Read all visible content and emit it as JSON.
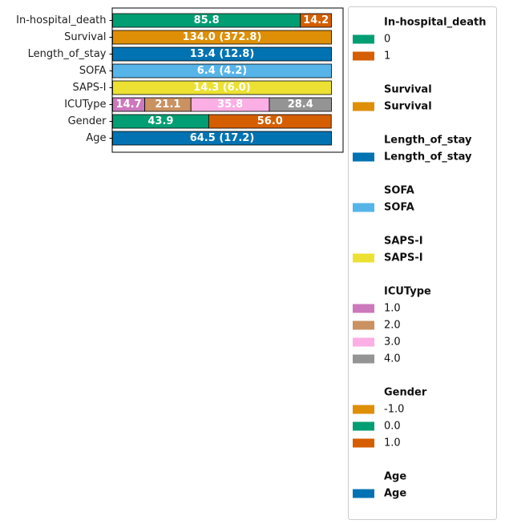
{
  "chart_data": {
    "type": "bar",
    "orientation": "horizontal",
    "stacked": true,
    "title": "",
    "xlabel": "",
    "ylabel": "",
    "xlim": [
      0,
      100
    ],
    "grid": false,
    "legend_placement": "right",
    "rows": [
      {
        "name": "In-hospital_death",
        "segments": [
          {
            "legend": "0",
            "value": 85.8,
            "label": "85.8",
            "color": "#029e73"
          },
          {
            "legend": "1",
            "value": 14.2,
            "label": "14.2",
            "color": "#d55e00"
          }
        ]
      },
      {
        "name": "Survival",
        "segments": [
          {
            "legend": "Survival",
            "value": 100,
            "label": "134.0 (372.8)",
            "color": "#de8f05"
          }
        ]
      },
      {
        "name": "Length_of_stay",
        "segments": [
          {
            "legend": "Length_of_stay",
            "value": 100,
            "label": "13.4 (12.8)",
            "color": "#0173b2"
          }
        ]
      },
      {
        "name": "SOFA",
        "segments": [
          {
            "legend": "SOFA",
            "value": 100,
            "label": "6.4 (4.2)",
            "color": "#56b4e9"
          }
        ]
      },
      {
        "name": "SAPS-I",
        "segments": [
          {
            "legend": "SAPS-I",
            "value": 100,
            "label": "14.3 (6.0)",
            "color": "#ece133"
          }
        ]
      },
      {
        "name": "ICUType",
        "segments": [
          {
            "legend": "1.0",
            "value": 14.7,
            "label": "14.7",
            "color": "#cc78bc"
          },
          {
            "legend": "2.0",
            "value": 21.1,
            "label": "21.1",
            "color": "#ca9161"
          },
          {
            "legend": "3.0",
            "value": 35.8,
            "label": "35.8",
            "color": "#fbafe4"
          },
          {
            "legend": "4.0",
            "value": 28.4,
            "label": "28.4",
            "color": "#949494"
          }
        ]
      },
      {
        "name": "Gender",
        "segments": [
          {
            "legend": "-1.0",
            "value": 0,
            "label": "",
            "color": "#de8f05"
          },
          {
            "legend": "0.0",
            "value": 43.9,
            "label": "43.9",
            "color": "#029e73"
          },
          {
            "legend": "1.0",
            "value": 56.0,
            "label": "56.0",
            "color": "#d55e00"
          }
        ]
      },
      {
        "name": "Age",
        "segments": [
          {
            "legend": "Age",
            "value": 100,
            "label": "64.5 (17.2)",
            "color": "#0173b2"
          }
        ]
      }
    ],
    "legend_groups": [
      {
        "title": "In-hospital_death",
        "items": [
          {
            "label": "0",
            "color": "#029e73"
          },
          {
            "label": "1",
            "color": "#d55e00"
          }
        ]
      },
      {
        "title": "Survival",
        "items": [
          {
            "label": "Survival",
            "color": "#de8f05",
            "bold": true
          }
        ]
      },
      {
        "title": "Length_of_stay",
        "items": [
          {
            "label": "Length_of_stay",
            "color": "#0173b2",
            "bold": true
          }
        ]
      },
      {
        "title": "SOFA",
        "items": [
          {
            "label": "SOFA",
            "color": "#56b4e9",
            "bold": true
          }
        ]
      },
      {
        "title": "SAPS-I",
        "items": [
          {
            "label": "SAPS-I",
            "color": "#ece133",
            "bold": true
          }
        ]
      },
      {
        "title": "ICUType",
        "items": [
          {
            "label": "1.0",
            "color": "#cc78bc"
          },
          {
            "label": "2.0",
            "color": "#ca9161"
          },
          {
            "label": "3.0",
            "color": "#fbafe4"
          },
          {
            "label": "4.0",
            "color": "#949494"
          }
        ]
      },
      {
        "title": "Gender",
        "items": [
          {
            "label": "-1.0",
            "color": "#de8f05"
          },
          {
            "label": "0.0",
            "color": "#029e73"
          },
          {
            "label": "1.0",
            "color": "#d55e00"
          }
        ]
      },
      {
        "title": "Age",
        "items": [
          {
            "label": "Age",
            "color": "#0173b2",
            "bold": true
          }
        ]
      }
    ]
  }
}
